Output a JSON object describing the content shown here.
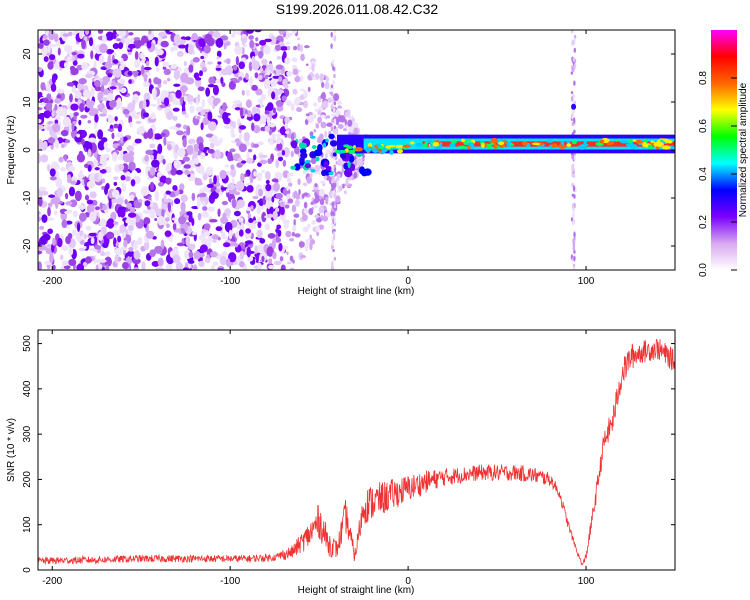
{
  "title": "S199.2026.011.08.42.C32",
  "chart_data": [
    {
      "type": "heatmap",
      "name": "spectrogram",
      "xlabel": "Height of straight line (km)",
      "ylabel": "Frequency (Hz)",
      "xlim": [
        -208,
        150
      ],
      "ylim": [
        -25,
        25
      ],
      "xticks": [
        "-200",
        "-100",
        "0",
        "100"
      ],
      "yticks": [
        "-20",
        "-10",
        "0",
        "10",
        "20"
      ],
      "grid": false,
      "features": {
        "noise_region_km": [
          -208,
          -68
        ],
        "transition_region_km": [
          -68,
          -25
        ],
        "carrier_band_hz": [
          0.5,
          2.0
        ],
        "vertical_streaks_km": [
          -42,
          93
        ]
      },
      "colorbar": {
        "label": "Normalized spectral amplitude",
        "range": [
          0,
          1
        ],
        "ticks": [
          "0.0",
          "0.2",
          "0.4",
          "0.6",
          "0.8"
        ],
        "colors": [
          "#ffffff",
          "#d8a8f0",
          "#7a00ff",
          "#0000ff",
          "#00ffff",
          "#00ff00",
          "#ffff00",
          "#ff6600",
          "#ff0000",
          "#ff00ff"
        ]
      }
    },
    {
      "type": "line",
      "name": "snr",
      "xlabel": "Height of straight line (km)",
      "ylabel": "SNR (10 * v/v)",
      "xlim": [
        -208,
        150
      ],
      "ylim": [
        0,
        530
      ],
      "xticks": [
        "-200",
        "-100",
        "0",
        "100"
      ],
      "yticks": [
        "0",
        "100",
        "200",
        "300",
        "400",
        "500"
      ],
      "color": "#f03232",
      "series": [
        {
          "name": "SNR",
          "x": [
            -208,
            -180,
            -150,
            -120,
            -90,
            -75,
            -65,
            -55,
            -50,
            -45,
            -40,
            -35,
            -30,
            -25,
            -20,
            -10,
            0,
            10,
            20,
            30,
            40,
            50,
            60,
            70,
            80,
            85,
            90,
            95,
            98,
            100,
            105,
            110,
            115,
            118,
            120,
            125,
            130,
            140,
            150
          ],
          "y": [
            20,
            22,
            25,
            25,
            25,
            28,
            40,
            80,
            110,
            60,
            45,
            120,
            30,
            140,
            150,
            165,
            180,
            195,
            205,
            210,
            215,
            215,
            215,
            210,
            200,
            170,
            100,
            40,
            10,
            30,
            150,
            280,
            330,
            390,
            430,
            470,
            480,
            490,
            460
          ],
          "noise": [
            8,
            8,
            8,
            8,
            8,
            8,
            15,
            30,
            40,
            30,
            20,
            40,
            15,
            40,
            40,
            35,
            30,
            25,
            20,
            18,
            18,
            18,
            18,
            18,
            15,
            12,
            10,
            6,
            4,
            10,
            20,
            25,
            30,
            30,
            30,
            30,
            25,
            25,
            25
          ]
        }
      ]
    }
  ]
}
